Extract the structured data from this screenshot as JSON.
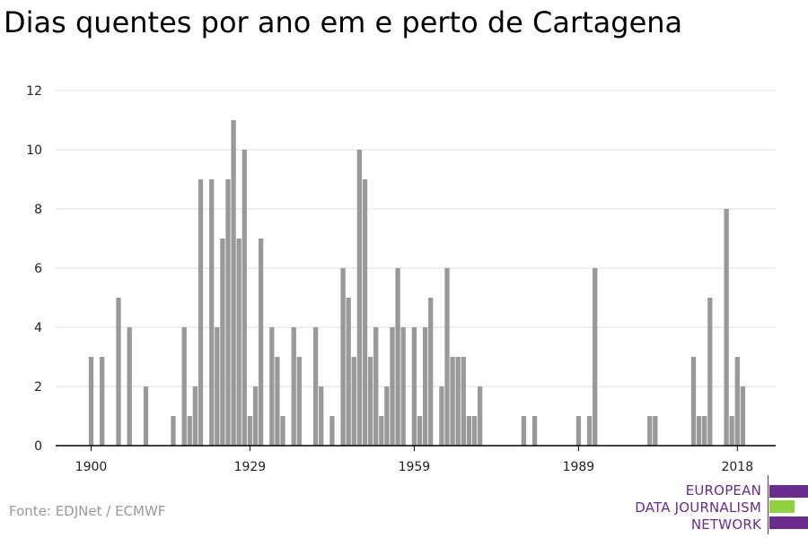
{
  "title": "Dias quentes por ano em e perto de Cartagena",
  "source": "Fonte: EDJNet / ECMWF",
  "logo": {
    "lines": [
      "EUROPEAN",
      "DATA JOURNALISM",
      "NETWORK"
    ],
    "colors": {
      "purple": "#6a2c8e",
      "green": "#8fd13f"
    }
  },
  "chart_data": {
    "type": "bar",
    "title": "Dias quentes por ano em e perto de Cartagena",
    "xlabel": "",
    "ylabel": "",
    "ylim": [
      0,
      12
    ],
    "yticks": [
      0,
      2,
      4,
      6,
      8,
      10,
      12
    ],
    "xticks": [
      1900,
      1929,
      1959,
      1989,
      2018
    ],
    "grid": true,
    "bar_color": "#999999",
    "x": [
      1900,
      1901,
      1902,
      1903,
      1904,
      1905,
      1906,
      1907,
      1908,
      1909,
      1910,
      1911,
      1912,
      1913,
      1914,
      1915,
      1916,
      1917,
      1918,
      1919,
      1920,
      1921,
      1922,
      1923,
      1924,
      1925,
      1926,
      1927,
      1928,
      1929,
      1930,
      1931,
      1932,
      1933,
      1934,
      1935,
      1936,
      1937,
      1938,
      1939,
      1940,
      1941,
      1942,
      1943,
      1944,
      1945,
      1946,
      1947,
      1948,
      1949,
      1950,
      1951,
      1952,
      1953,
      1954,
      1955,
      1956,
      1957,
      1958,
      1959,
      1960,
      1961,
      1962,
      1963,
      1964,
      1965,
      1966,
      1967,
      1968,
      1969,
      1970,
      1971,
      1972,
      1973,
      1974,
      1975,
      1976,
      1977,
      1978,
      1979,
      1980,
      1981,
      1982,
      1983,
      1984,
      1985,
      1986,
      1987,
      1988,
      1989,
      1990,
      1991,
      1992,
      1993,
      1994,
      1995,
      1996,
      1997,
      1998,
      1999,
      2000,
      2001,
      2002,
      2003,
      2004,
      2005,
      2006,
      2007,
      2008,
      2009,
      2010,
      2011,
      2012,
      2013,
      2014,
      2015,
      2016,
      2017,
      2018,
      2019,
      2020
    ],
    "values": [
      3,
      0,
      3,
      0,
      0,
      5,
      0,
      4,
      0,
      0,
      2,
      0,
      0,
      0,
      0,
      1,
      0,
      4,
      1,
      2,
      9,
      0,
      9,
      4,
      7,
      9,
      11,
      7,
      10,
      1,
      2,
      7,
      0,
      4,
      3,
      1,
      0,
      4,
      3,
      0,
      0,
      4,
      2,
      0,
      1,
      0,
      6,
      5,
      3,
      10,
      9,
      3,
      4,
      1,
      2,
      4,
      6,
      4,
      0,
      4,
      1,
      4,
      5,
      0,
      2,
      6,
      3,
      3,
      3,
      1,
      1,
      2,
      0,
      0,
      0,
      0,
      0,
      0,
      0,
      1,
      0,
      1,
      0,
      0,
      0,
      0,
      0,
      0,
      0,
      1,
      0,
      1,
      6,
      0,
      0,
      0,
      0,
      0,
      0,
      0,
      0,
      0,
      1,
      1,
      0,
      0,
      0,
      0,
      0,
      0,
      3,
      1,
      1,
      5,
      0,
      0,
      8,
      1,
      3,
      2,
      0
    ]
  }
}
